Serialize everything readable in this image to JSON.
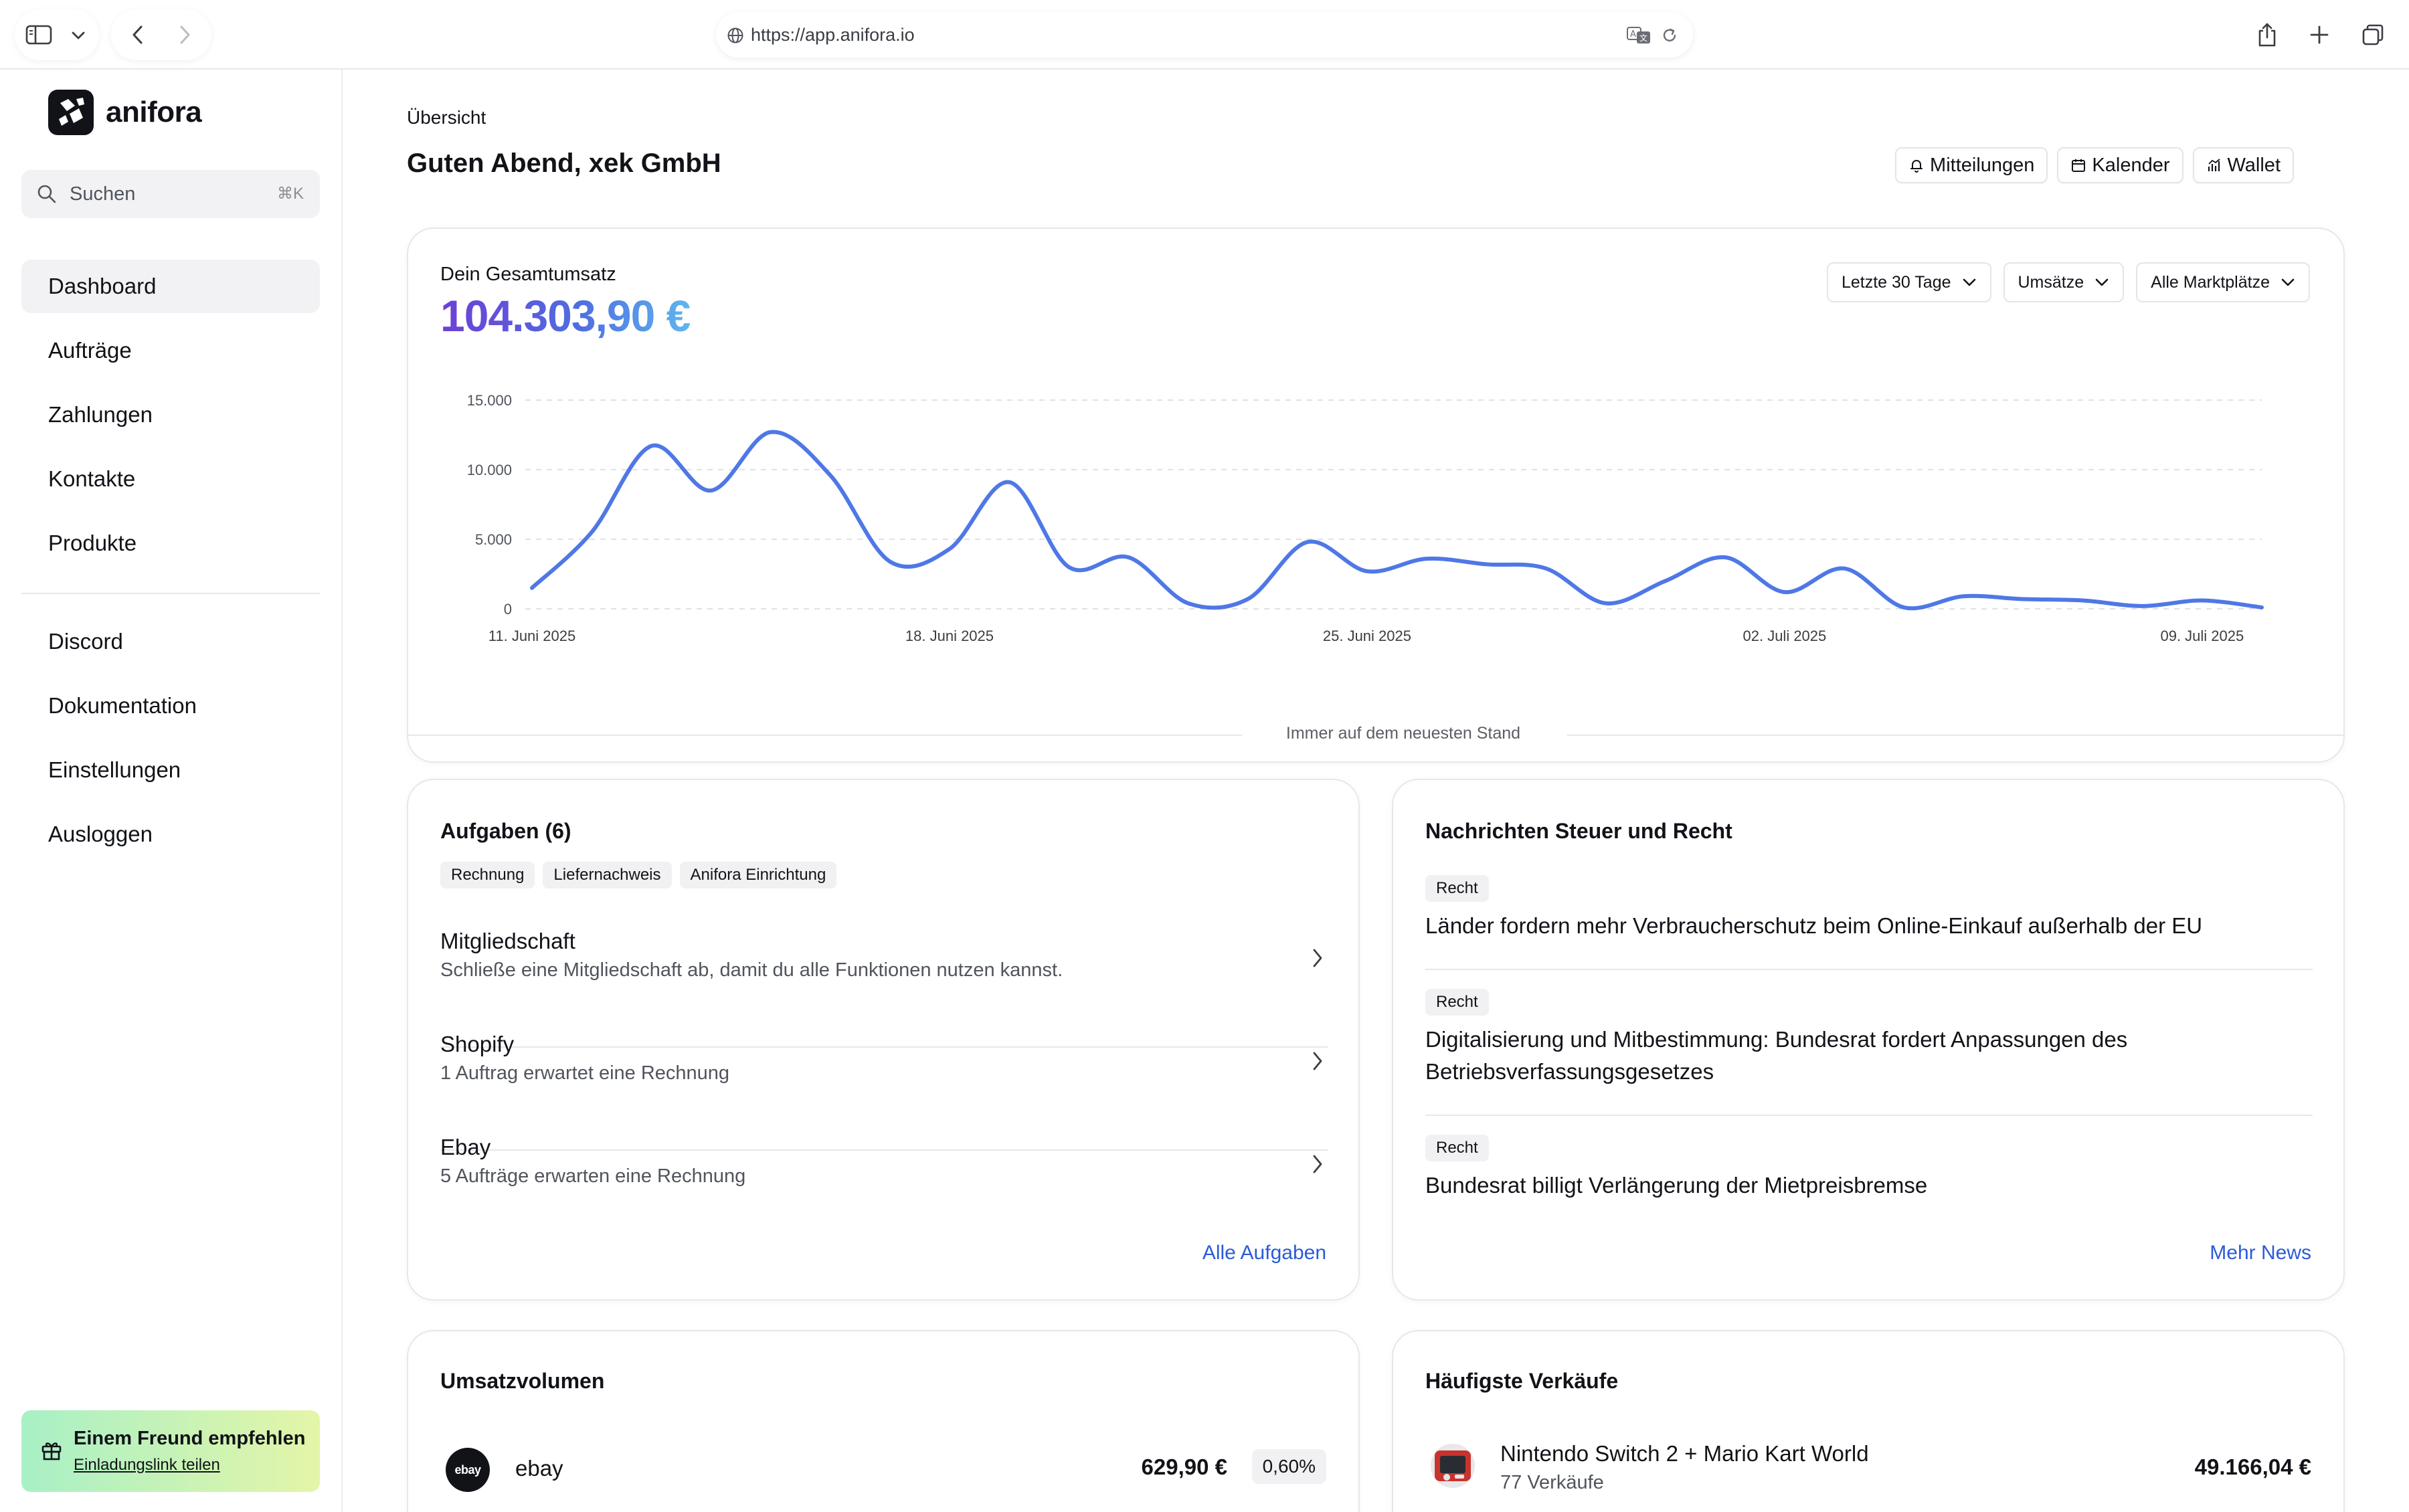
{
  "browser": {
    "url": "https://app.anifora.io"
  },
  "brand": {
    "name": "anifora"
  },
  "search": {
    "placeholder": "Suchen",
    "shortcut": "⌘K"
  },
  "nav": {
    "primary": [
      {
        "label": "Dashboard",
        "active": true
      },
      {
        "label": "Aufträge"
      },
      {
        "label": "Zahlungen"
      },
      {
        "label": "Kontakte"
      },
      {
        "label": "Produkte"
      }
    ],
    "secondary": [
      {
        "label": "Discord"
      },
      {
        "label": "Dokumentation"
      },
      {
        "label": "Einstellungen"
      },
      {
        "label": "Ausloggen"
      }
    ]
  },
  "referral": {
    "title": "Einem Freund empfehlen",
    "link": "Einladungslink teilen"
  },
  "header": {
    "breadcrumb": "Übersicht",
    "greeting": "Guten Abend, xek GmbH",
    "buttons": [
      {
        "label": "Mitteilungen",
        "icon": "bell-icon"
      },
      {
        "label": "Kalender",
        "icon": "calendar-icon"
      },
      {
        "label": "Wallet",
        "icon": "chart-icon"
      }
    ]
  },
  "revenue": {
    "label": "Dein Gesamtumsatz",
    "value": "104.303,90 €",
    "filters": [
      "Letzte 30 Tage",
      "Umsätze",
      "Alle Marktplätze"
    ]
  },
  "chart_data": {
    "type": "line",
    "color": "#4f78e6",
    "x_start": "11. Juni 2025",
    "x": [
      "11. Juni 2025",
      "12. Juni 2025",
      "13. Juni 2025",
      "14. Juni 2025",
      "15. Juni 2025",
      "16. Juni 2025",
      "17. Juni 2025",
      "18. Juni 2025",
      "19. Juni 2025",
      "20. Juni 2025",
      "21. Juni 2025",
      "22. Juni 2025",
      "23. Juni 2025",
      "24. Juni 2025",
      "25. Juni 2025",
      "26. Juni 2025",
      "27. Juni 2025",
      "28. Juni 2025",
      "29. Juni 2025",
      "30. Juni 2025",
      "01. Juli 2025",
      "02. Juli 2025",
      "03. Juli 2025",
      "04. Juli 2025",
      "05. Juli 2025",
      "06. Juli 2025",
      "07. Juli 2025",
      "08. Juli 2025",
      "09. Juli 2025",
      "10. Juli 2025"
    ],
    "values": [
      1500,
      5500,
      11700,
      8500,
      12700,
      9600,
      3400,
      4300,
      9100,
      3000,
      3700,
      400,
      700,
      4800,
      2700,
      3600,
      3200,
      2900,
      400,
      2000,
      3700,
      1200,
      2900,
      100,
      900,
      700,
      600,
      200,
      600,
      100
    ],
    "xticks": [
      "11. Juni 2025",
      "18. Juni 2025",
      "25. Juni 2025",
      "02. Juli 2025",
      "09. Juli 2025"
    ],
    "yticks": [
      "0",
      "5.000",
      "10.000",
      "15.000"
    ],
    "ylim": [
      0,
      15000
    ],
    "grid": true
  },
  "separator": "Immer auf dem neuesten Stand",
  "tasks": {
    "title": "Aufgaben (6)",
    "tags": [
      "Rechnung",
      "Liefernachweis",
      "Anifora Einrichtung"
    ],
    "items": [
      {
        "title": "Mitgliedschaft",
        "subtitle": "Schließe eine Mitgliedschaft ab, damit du alle Funktionen nutzen kannst."
      },
      {
        "title": "Shopify",
        "subtitle": "1 Auftrag erwartet eine Rechnung"
      },
      {
        "title": "Ebay",
        "subtitle": "5 Aufträge erwarten eine Rechnung"
      }
    ],
    "link": "Alle Aufgaben"
  },
  "news": {
    "title": "Nachrichten Steuer und Recht",
    "items": [
      {
        "tag": "Recht",
        "title": "Länder fordern mehr Verbraucherschutz beim Online-Einkauf außerhalb der EU"
      },
      {
        "tag": "Recht",
        "title": "Digitalisierung und Mitbestimmung: Bundesrat fordert Anpassungen des Betriebsverfassungsgesetzes"
      },
      {
        "tag": "Recht",
        "title": "Bundesrat billigt Verlängerung der Mietpreisbremse"
      }
    ],
    "link": "Mehr News"
  },
  "volume": {
    "title": "Umsatzvolumen",
    "rows": [
      {
        "logo": "ebay",
        "name": "ebay",
        "amount": "629,90 €",
        "share": "0,60%"
      }
    ]
  },
  "top_sales": {
    "title": "Häufigste Verkäufe",
    "rows": [
      {
        "name": "Nintendo Switch 2 + Mario Kart World",
        "sub": "77 Verkäufe",
        "amount": "49.166,04 €"
      }
    ]
  }
}
